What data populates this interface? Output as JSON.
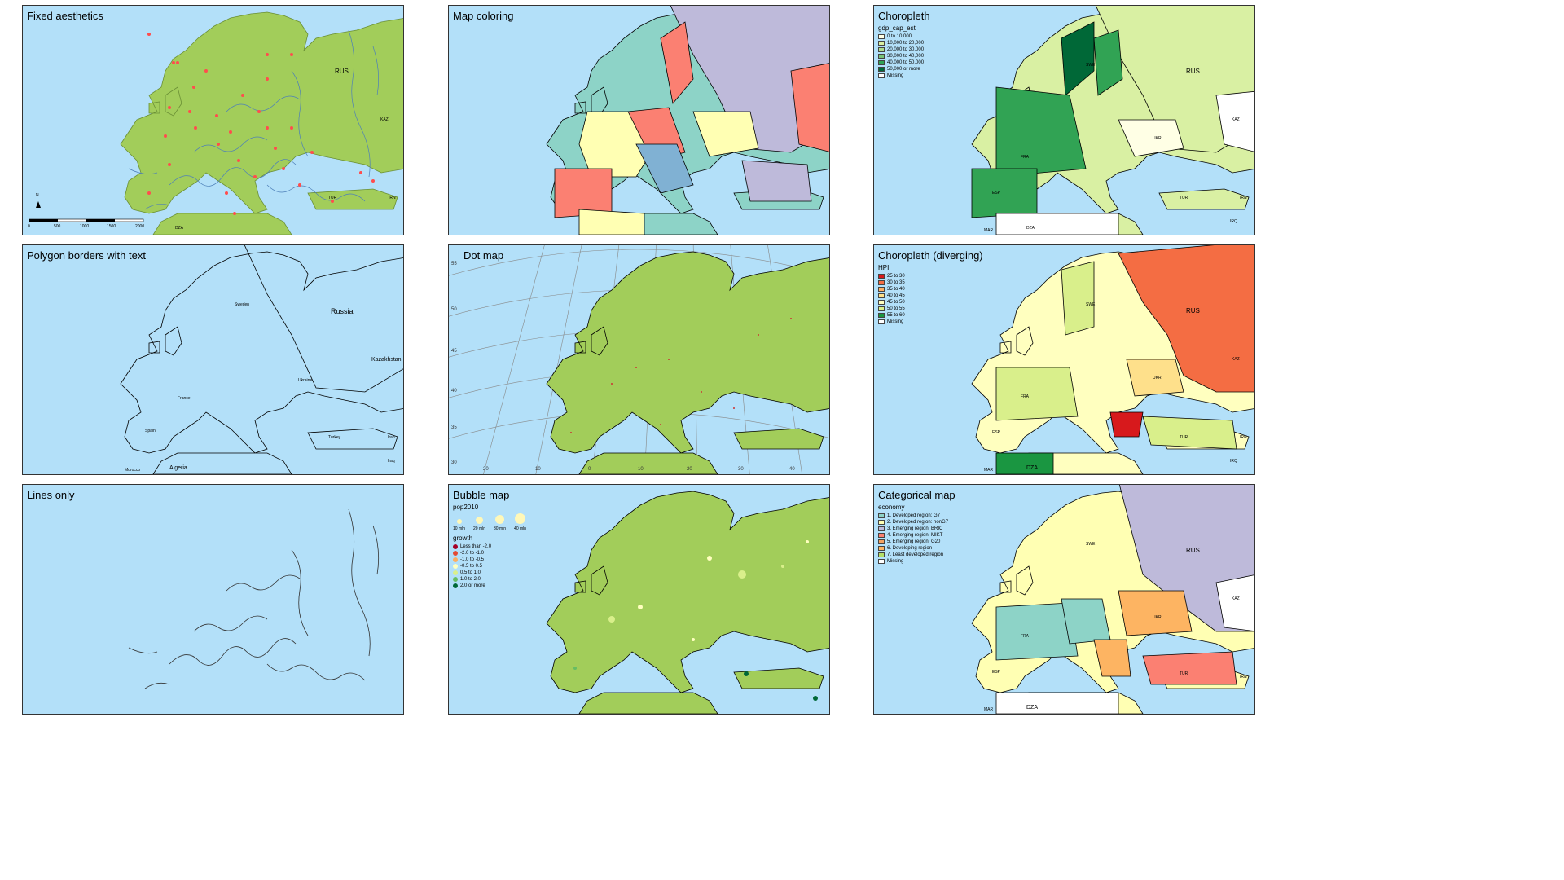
{
  "panels": {
    "p1": {
      "title": "Fixed aesthetics",
      "labels": {
        "rus": "RUS",
        "kaz": "KAZ",
        "dza": "DZA",
        "irn": "IRN",
        "tur": "TUR"
      },
      "scale_ticks": [
        "0",
        "500",
        "1000",
        "1500",
        "2000"
      ],
      "north": "N"
    },
    "p2": {
      "title": "Map coloring"
    },
    "p3": {
      "title": "Choropleth",
      "legend_title": "gdp_cap_est",
      "legend": [
        {
          "label": "0 to 10,000",
          "color": "#ffffe5"
        },
        {
          "label": "10,000 to 20,000",
          "color": "#d9f0a3"
        },
        {
          "label": "20,000 to 30,000",
          "color": "#addd8e"
        },
        {
          "label": "30,000 to 40,000",
          "color": "#78c679"
        },
        {
          "label": "40,000 to 50,000",
          "color": "#31a354"
        },
        {
          "label": "50,000 or more",
          "color": "#006837"
        },
        {
          "label": "Missing",
          "color": "#ffffff"
        }
      ],
      "labels": {
        "rus": "RUS",
        "kaz": "KAZ",
        "irn": "IRN",
        "tur": "TUR",
        "ukr": "UKR",
        "fra": "FRA",
        "esp": "ESP",
        "swe": "SWE",
        "dza": "DZA",
        "mar": "MAR",
        "irq": "IRQ"
      }
    },
    "p4": {
      "title": "Polygon borders with text",
      "labels": {
        "russia": "Russia",
        "kazakhstan": "Kazakhstan",
        "algeria": "Algeria",
        "morocco": "Morocco",
        "turkey": "Turkey",
        "ukraine": "Ukraine",
        "france": "France",
        "spain": "Spain",
        "iran": "Iran",
        "iraq": "Iraq",
        "sweden": "Sweden"
      }
    },
    "p5": {
      "title": "Dot map",
      "lat_ticks": [
        "55",
        "50",
        "45",
        "40",
        "35",
        "30"
      ],
      "lon_ticks": [
        "-20",
        "-10",
        "0",
        "10",
        "20",
        "30",
        "40"
      ]
    },
    "p6": {
      "title": "Choropleth (diverging)",
      "legend_title": "HPI",
      "legend": [
        {
          "label": "25 to 30",
          "color": "#d7191c"
        },
        {
          "label": "30 to 35",
          "color": "#f46d43"
        },
        {
          "label": "35 to 40",
          "color": "#fdae61"
        },
        {
          "label": "40 to 45",
          "color": "#fee08b"
        },
        {
          "label": "45 to 50",
          "color": "#ffffbf"
        },
        {
          "label": "50 to 55",
          "color": "#d9ef8b"
        },
        {
          "label": "55 to 60",
          "color": "#1a9641"
        },
        {
          "label": "Missing",
          "color": "#ffffff"
        }
      ],
      "labels": {
        "rus": "RUS",
        "kaz": "KAZ",
        "irn": "IRN",
        "tur": "TUR",
        "ukr": "UKR",
        "fra": "FRA",
        "esp": "ESP",
        "swe": "SWE",
        "dza": "DZA",
        "mar": "MAR",
        "irq": "IRQ"
      }
    },
    "p7": {
      "title": "Lines only"
    },
    "p8": {
      "title": "Bubble map",
      "size_title": "pop2010",
      "sizes": [
        "10 mln",
        "20 mln",
        "30 mln",
        "40 mln"
      ],
      "color_title": "growth",
      "colors": [
        {
          "label": "Less than -2.0",
          "color": "#a50026"
        },
        {
          "label": "-2.0 to -1.0",
          "color": "#e34a33"
        },
        {
          "label": "-1.0 to -0.5",
          "color": "#fdae61"
        },
        {
          "label": "-0.5 to 0.5",
          "color": "#ffffbf"
        },
        {
          "label": "0.5 to 1.0",
          "color": "#d9ef8b"
        },
        {
          "label": "1.0 to 2.0",
          "color": "#66bd63"
        },
        {
          "label": "2.0 or more",
          "color": "#006837"
        }
      ]
    },
    "p9": {
      "title": "Categorical map",
      "legend_title": "economy",
      "legend": [
        {
          "label": "1. Developed region: G7",
          "color": "#8dd3c7"
        },
        {
          "label": "2. Developed region: nonG7",
          "color": "#ffffb3"
        },
        {
          "label": "3. Emerging region: BRIC",
          "color": "#bebada"
        },
        {
          "label": "4. Emerging region: MIKT",
          "color": "#fb8072"
        },
        {
          "label": "5. Emerging region: G20",
          "color": "#f4a261"
        },
        {
          "label": "6. Developing region",
          "color": "#fdb462"
        },
        {
          "label": "7. Least developed region",
          "color": "#b3de69"
        },
        {
          "label": "Missing",
          "color": "#ffffff"
        }
      ],
      "labels": {
        "rus": "RUS",
        "kaz": "KAZ",
        "irn": "IRN",
        "tur": "TUR",
        "ukr": "UKR",
        "fra": "FRA",
        "esp": "ESP",
        "swe": "SWE",
        "dza": "DZA",
        "mar": "MAR"
      }
    }
  },
  "colors": {
    "sea": "#b3e0f9",
    "land": "#a2cd5a",
    "river": "#4d7fb8",
    "dot": "#ff4d4d"
  }
}
